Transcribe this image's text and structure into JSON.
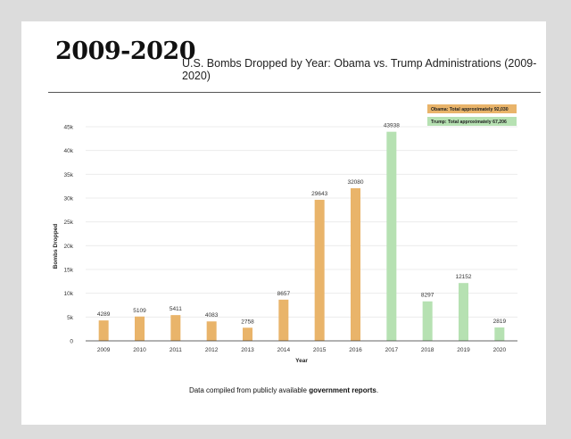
{
  "header": {
    "big_title": "2009-2020",
    "subtitle": "U.S. Bombs Dropped by Year: Obama vs. Trump Administrations (2009-2020)"
  },
  "footer": {
    "note_prefix": "Data compiled from publicly available ",
    "note_bold": "government reports",
    "note_suffix": "."
  },
  "colors": {
    "obama": "#e9b46a",
    "trump": "#b6e1b2",
    "grid": "#e8e8e8",
    "axis": "#333333"
  },
  "chart_data": {
    "type": "bar",
    "title": "",
    "xlabel": "Year",
    "ylabel": "Bombs Dropped",
    "ylim": [
      0,
      45000
    ],
    "yticks": [
      0,
      5000,
      10000,
      15000,
      20000,
      25000,
      30000,
      35000,
      40000,
      45000
    ],
    "ytick_labels": [
      "0",
      "5k",
      "10k",
      "15k",
      "20k",
      "25k",
      "30k",
      "35k",
      "40k",
      "45k"
    ],
    "grid": true,
    "legend_position": "top-right",
    "categories": [
      "2009",
      "2010",
      "2011",
      "2012",
      "2013",
      "2014",
      "2015",
      "2016",
      "2017",
      "2018",
      "2019",
      "2020"
    ],
    "series": [
      {
        "name": "Obama: Total approximately 92,030",
        "color": "#e9b46a",
        "values": [
          4289,
          5109,
          5411,
          4083,
          2758,
          8657,
          29643,
          32080,
          null,
          null,
          null,
          null
        ]
      },
      {
        "name": "Trump: Total approximately 67,206",
        "color": "#b6e1b2",
        "values": [
          null,
          null,
          null,
          null,
          null,
          null,
          null,
          null,
          43938,
          8297,
          12152,
          2819
        ]
      }
    ]
  }
}
